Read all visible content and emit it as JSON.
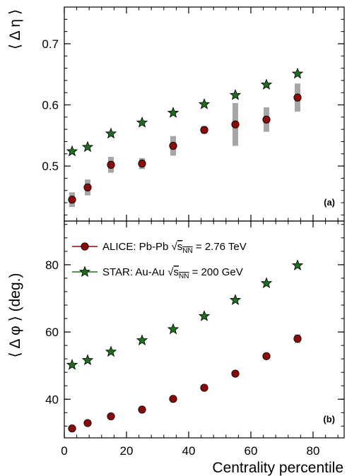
{
  "colors": {
    "alice_fill": "#8b0a0a",
    "alice_line": "#8b0a0a",
    "star_fill": "#1f6e1f",
    "syst_band": "#a6a6a6"
  },
  "chart_data": [
    {
      "type": "scatter",
      "panel_label": "(a)",
      "ylabel": "⟨ Δ η ⟩",
      "xlabel": "",
      "xlim": [
        0,
        90
      ],
      "ylim": [
        0.41,
        0.76
      ],
      "yticks": [
        0.5,
        0.6,
        0.7
      ],
      "ytick_labels": [
        "0.5",
        "0.6",
        "0.7"
      ],
      "grid": false,
      "series": [
        {
          "name": "ALICE: Pb-Pb √sNN = 2.76 TeV",
          "marker": "circle",
          "x": [
            2.5,
            7.5,
            15,
            25,
            35,
            45,
            55,
            65,
            75
          ],
          "y": [
            0.445,
            0.465,
            0.502,
            0.504,
            0.533,
            0.559,
            0.568,
            0.576,
            0.612
          ],
          "syst": [
            0.012,
            0.013,
            0.013,
            0.009,
            0.016,
            0.006,
            0.035,
            0.02,
            0.023
          ]
        },
        {
          "name": "STAR: Au-Au √sNN = 200 GeV",
          "marker": "star",
          "x": [
            2.5,
            7.5,
            15,
            25,
            35,
            45,
            55,
            65,
            75
          ],
          "y": [
            0.524,
            0.531,
            0.553,
            0.571,
            0.587,
            0.601,
            0.616,
            0.633,
            0.651
          ]
        }
      ]
    },
    {
      "type": "scatter",
      "panel_label": "(b)",
      "ylabel": "⟨ Δ φ ⟩ (deg.)",
      "xlabel": "Centrality percentile",
      "xlim": [
        0,
        90
      ],
      "ylim": [
        28.5,
        93
      ],
      "xticks": [
        0,
        20,
        40,
        60,
        80
      ],
      "xtick_labels": [
        "0",
        "20",
        "40",
        "60",
        "80"
      ],
      "yticks": [
        40,
        60,
        80
      ],
      "ytick_labels": [
        "40",
        "60",
        "80"
      ],
      "grid": false,
      "legend": {
        "position": "top-left",
        "entries": [
          {
            "series": 0,
            "prefix": "ALICE: Pb-Pb ",
            "sqrt": "s",
            "sub": "NN",
            "suffix": " = 2.76 TeV"
          },
          {
            "series": 1,
            "prefix": "STAR: Au-Au ",
            "sqrt": "s",
            "sub": "NN",
            "suffix": " = 200 GeV"
          }
        ]
      },
      "series": [
        {
          "name": "ALICE: Pb-Pb √sNN = 2.76 TeV",
          "marker": "circle",
          "x": [
            2.5,
            7.5,
            15,
            25,
            35,
            45,
            55,
            65,
            75
          ],
          "y": [
            31.3,
            32.9,
            34.9,
            36.9,
            40.1,
            43.4,
            47.6,
            52.8,
            58.0
          ],
          "syst": [
            0,
            0,
            0,
            0,
            0,
            0,
            0,
            0.9,
            1.3
          ]
        },
        {
          "name": "STAR: Au-Au √sNN = 200 GeV",
          "marker": "star",
          "x": [
            2.5,
            7.5,
            15,
            25,
            35,
            45,
            55,
            65,
            75
          ],
          "y": [
            50.2,
            51.6,
            54.1,
            57.5,
            60.8,
            64.7,
            69.5,
            74.5,
            79.8
          ]
        }
      ]
    }
  ]
}
